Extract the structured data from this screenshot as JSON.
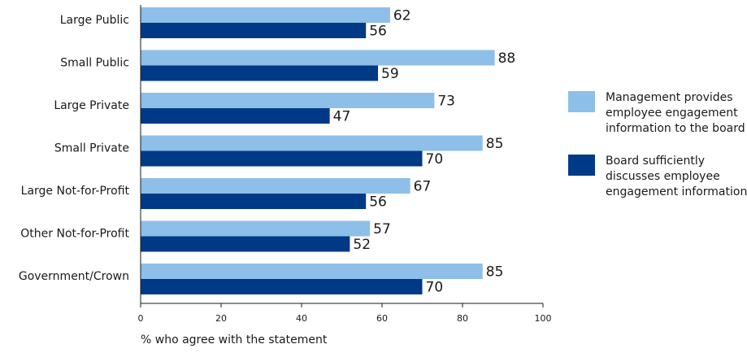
{
  "chart_data": {
    "type": "bar",
    "orientation": "horizontal",
    "categories": [
      "Large Public",
      "Small Public",
      "Large Private",
      "Small Private",
      "Large Not-for-Profit",
      "Other Not-for-Profit",
      "Government/Crown"
    ],
    "series": [
      {
        "name": "Management provides employee engagement information to the board",
        "legend_lines": [
          "Management provides",
          "employee engagement",
          "information to the board"
        ],
        "color": "#8dbfe8",
        "values": [
          62,
          88,
          73,
          85,
          67,
          57,
          85
        ]
      },
      {
        "name": "Board sufficiently discusses employee engagement information",
        "legend_lines": [
          "Board sufficiently",
          "discusses employee",
          "engagement information"
        ],
        "color": "#003a87",
        "values": [
          56,
          59,
          47,
          70,
          56,
          52,
          70
        ]
      }
    ],
    "xlabel": "% who agree with the statement",
    "ylabel": "",
    "xlim": [
      0,
      100
    ],
    "xticks": [
      0,
      20,
      40,
      60,
      80,
      100
    ],
    "grid": false,
    "legend_position": "right"
  }
}
